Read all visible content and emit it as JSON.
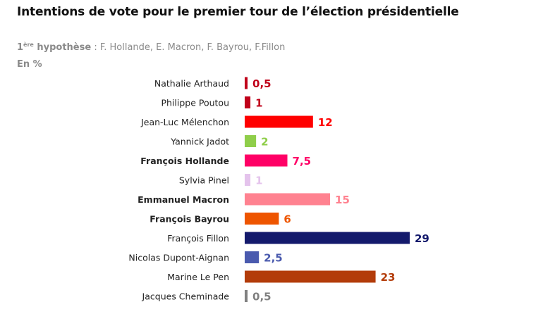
{
  "header": {
    "title": "Intentions de vote pour le premier tour de l’élection présidentielle",
    "subtitle_ordinal": "1",
    "subtitle_sup": "ère",
    "subtitle_bold": "hypothèse",
    "subtitle_rest": " : F. Hollande, E. Macron, F. Bayrou, F.Fillon",
    "unit": "En %"
  },
  "chart_data": {
    "type": "bar",
    "orientation": "horizontal",
    "title": "Intentions de vote pour le premier tour de l’élection présidentielle",
    "subtitle": "1ère hypothèse : F. Hollande, E. Macron, F. Bayrou, F.Fillon",
    "unit_label": "En %",
    "xlabel": "",
    "ylabel": "",
    "xlim": [
      0,
      29
    ],
    "grid": false,
    "legend": "none",
    "categories": [
      "Nathalie Arthaud",
      "Philippe Poutou",
      "Jean-Luc Mélenchon",
      "Yannick Jadot",
      "François Hollande",
      "Sylvia Pinel",
      "Emmanuel Macron",
      "François Bayrou",
      "François Fillon",
      "Nicolas Dupont-Aignan",
      "Marine Le Pen",
      "Jacques Cheminade"
    ],
    "values": [
      0.5,
      1,
      12,
      2,
      7.5,
      1,
      15,
      6,
      29,
      2.5,
      23,
      0.5
    ],
    "value_labels": [
      "0,5",
      "1",
      "12",
      "2",
      "7,5",
      "1",
      "15",
      "6",
      "29",
      "2,5",
      "23",
      "0,5"
    ],
    "bold_categories": [
      "François Hollande",
      "Emmanuel Macron",
      "François Bayrou"
    ],
    "colors": [
      "#c0001a",
      "#c0001a",
      "#ff0000",
      "#8fce4a",
      "#ff0066",
      "#e4c3ec",
      "#ff8290",
      "#ee5500",
      "#141a6c",
      "#4a5aae",
      "#b33c0a",
      "#808080"
    ]
  }
}
